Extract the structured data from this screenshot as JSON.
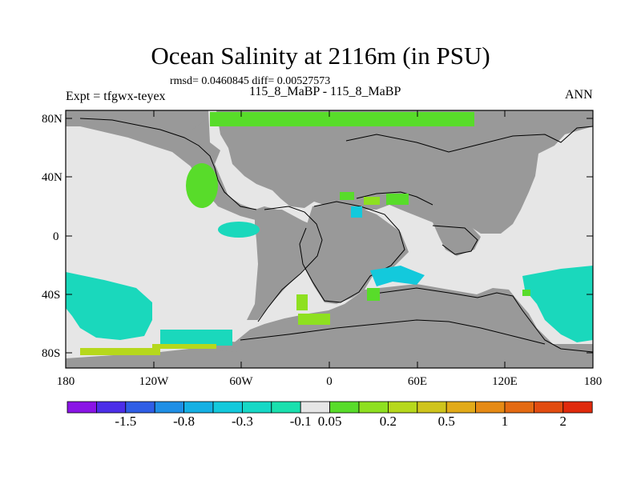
{
  "title": "Ocean Salinity at 2116m (in PSU)",
  "stats": "rmsd= 0.0460845  diff= 0.00527573",
  "experiment": "Expt = tfgwx-teyex",
  "period": "115_8_MaBP - 115_8_MaBP",
  "season": "ANN",
  "axes": {
    "y_ticks": [
      "80N",
      "40N",
      "0",
      "40S",
      "80S"
    ],
    "x_ticks": [
      "180",
      "120W",
      "60W",
      "0",
      "60E",
      "120E",
      "180"
    ]
  },
  "colorbar": {
    "colors": [
      "#8a14e6",
      "#4c2ee8",
      "#2f5ee6",
      "#1f8fe6",
      "#15b0e4",
      "#13c9dc",
      "#16d8c6",
      "#1ae0ae",
      "#e6e6e6",
      "#58dc2a",
      "#8ee020",
      "#b6d81c",
      "#cfc41c",
      "#e2aa18",
      "#e68a14",
      "#e46a12",
      "#e24c10",
      "#e02a0c"
    ],
    "labels": [
      "-1.5",
      "-0.8",
      "-0.3",
      "-0.1",
      "0.05",
      "0.2",
      "0.5",
      "1",
      "2"
    ]
  },
  "map_colors": {
    "land": "#999999",
    "no_change": "#e6e6e6",
    "slight_negative": "#1ad8bc",
    "cyan": "#13c9dc",
    "slight_positive": "#58dc2a",
    "yellow_green": "#b6d81c"
  }
}
